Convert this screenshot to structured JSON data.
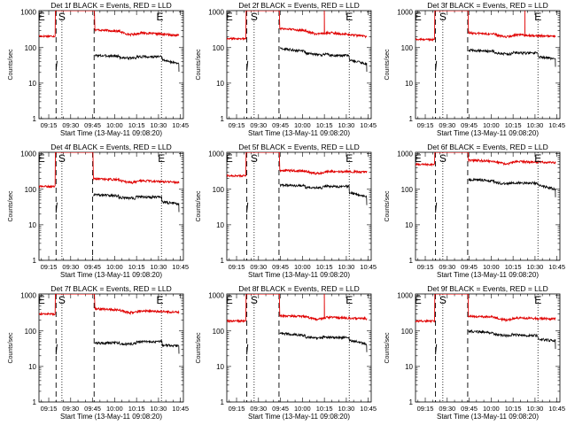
{
  "figure": {
    "panels": [
      {
        "title": "Det 1f BLACK = Events, RED = LLD"
      },
      {
        "title": "Det 2f BLACK = Events, RED = LLD"
      },
      {
        "title": "Det 3f BLACK = Events, RED = LLD"
      },
      {
        "title": "Det 4f BLACK = Events, RED = LLD"
      },
      {
        "title": "Det 5f BLACK = Events, RED = LLD"
      },
      {
        "title": "Det 6f BLACK = Events, RED = LLD"
      },
      {
        "title": "Det 7f BLACK = Events, RED = LLD"
      },
      {
        "title": "Det 8f BLACK = Events, RED = LLD"
      },
      {
        "title": "Det 9f BLACK = Events, RED = LLD"
      }
    ]
  },
  "chart_data": {
    "type": "line",
    "grid": false,
    "legend": "none",
    "xlabel": "Start Time (13-May-11 09:08:20)",
    "ylabel": "Counts/sec",
    "x_ticks": [
      "09:15",
      "09:30",
      "09:45",
      "10:00",
      "10:15",
      "10:30",
      "10:45"
    ],
    "x_tick_minutes": [
      15,
      30,
      45,
      60,
      75,
      90,
      105
    ],
    "xlim_minutes": [
      8.33,
      107
    ],
    "y_scale": "log",
    "ylim": [
      1,
      1100
    ],
    "y_ticks": [
      "1",
      "10",
      "100",
      "1000"
    ],
    "y_tick_values": [
      1,
      10,
      100,
      1000
    ],
    "series_colors": {
      "events": "#000000",
      "lld": "#e00000"
    },
    "marker_labels": {
      "S": "S",
      "E": "E"
    },
    "panels": [
      {
        "name": "Det 1f",
        "markers": {
          "left_E": 10,
          "S": 24,
          "right_E": 91
        },
        "dotted_lines": [
          24,
          92
        ],
        "dashed_lines": [
          20,
          46
        ],
        "lld": {
          "early": 210,
          "mid": 320,
          "spike_min": 42,
          "late": 230,
          "dip": 170
        },
        "events": {
          "early_min": 22,
          "early_max": 45,
          "start_val": 60,
          "late": 55,
          "dip": 45,
          "end": 35
        }
      },
      {
        "name": "Det 2f",
        "markers": {
          "left_E": 10,
          "S": 27,
          "right_E": 92
        },
        "dotted_lines": [
          27,
          92
        ],
        "dashed_lines": [
          22,
          44
        ],
        "lld": {
          "early": 180,
          "mid": 350,
          "spike_min": 75,
          "late": 210,
          "dip": 180
        },
        "events": {
          "early_min": 22,
          "early_max": 45,
          "start_val": 95,
          "late": 60,
          "dip": 45,
          "end": 35
        }
      },
      {
        "name": "Det 3f",
        "markers": {
          "left_E": 10,
          "S": 27,
          "right_E": 92
        },
        "dotted_lines": [
          27,
          92
        ],
        "dashed_lines": [
          22,
          44
        ],
        "lld": {
          "early": 170,
          "mid": 260,
          "spike_min": 83,
          "late": 210,
          "dip": 190
        },
        "events": {
          "early_min": 22,
          "early_max": 45,
          "start_val": 85,
          "late": 70,
          "dip": 55,
          "end": 48
        }
      },
      {
        "name": "Det 4f",
        "markers": {
          "left_E": 10,
          "S": 24,
          "right_E": 92
        },
        "dotted_lines": [
          24,
          92
        ],
        "dashed_lines": [
          20,
          45
        ],
        "lld": {
          "early": 120,
          "mid": 200,
          "spike_min": 42,
          "late": 160,
          "dip": 140
        },
        "events": {
          "early_min": 22,
          "early_max": 45,
          "start_val": 70,
          "late": 60,
          "dip": 45,
          "end": 38
        }
      },
      {
        "name": "Det 5f",
        "markers": {
          "left_E": 10,
          "S": 27,
          "right_E": 92
        },
        "dotted_lines": [
          27,
          92
        ],
        "dashed_lines": [
          22,
          44
        ],
        "lld": {
          "early": 240,
          "mid": 340,
          "spike_min": 0,
          "late": 320,
          "dip": 240
        },
        "events": {
          "early_min": 22,
          "early_max": 45,
          "start_val": 130,
          "late": 120,
          "dip": 80,
          "end": 60
        }
      },
      {
        "name": "Det 6f",
        "markers": {
          "left_E": 10,
          "S": 27,
          "right_E": 92
        },
        "dotted_lines": [
          27,
          92
        ],
        "dashed_lines": [
          22,
          44
        ],
        "lld": {
          "early": 500,
          "mid": 650,
          "spike_min": 0,
          "late": 580,
          "dip": 500
        },
        "events": {
          "early_min": 22,
          "early_max": 45,
          "start_val": 190,
          "late": 150,
          "dip": 130,
          "end": 100
        }
      },
      {
        "name": "Det 7f",
        "markers": {
          "left_E": 10,
          "S": 24,
          "right_E": 91
        },
        "dotted_lines": [
          24,
          92
        ],
        "dashed_lines": [
          20,
          46
        ],
        "lld": {
          "early": 300,
          "mid": 420,
          "spike_min": 42,
          "late": 340,
          "dip": 300
        },
        "events": {
          "early_min": 22,
          "early_max": 45,
          "start_val": 45,
          "late": 50,
          "dip": 40,
          "end": 38
        }
      },
      {
        "name": "Det 8f",
        "markers": {
          "left_E": 10,
          "S": 27,
          "right_E": 92
        },
        "dotted_lines": [
          27,
          92
        ],
        "dashed_lines": [
          22,
          44
        ],
        "lld": {
          "early": 190,
          "mid": 270,
          "spike_min": 75,
          "late": 230,
          "dip": 180
        },
        "events": {
          "early_min": 22,
          "early_max": 45,
          "start_val": 85,
          "late": 65,
          "dip": 55,
          "end": 42
        }
      },
      {
        "name": "Det 9f",
        "markers": {
          "left_E": 10,
          "S": 27,
          "right_E": 92
        },
        "dotted_lines": [
          27,
          92
        ],
        "dashed_lines": [
          22,
          44
        ],
        "lld": {
          "early": 190,
          "mid": 260,
          "spike_min": 0,
          "late": 220,
          "dip": 200
        },
        "events": {
          "early_min": 22,
          "early_max": 45,
          "start_val": 100,
          "late": 75,
          "dip": 60,
          "end": 52
        }
      }
    ]
  }
}
